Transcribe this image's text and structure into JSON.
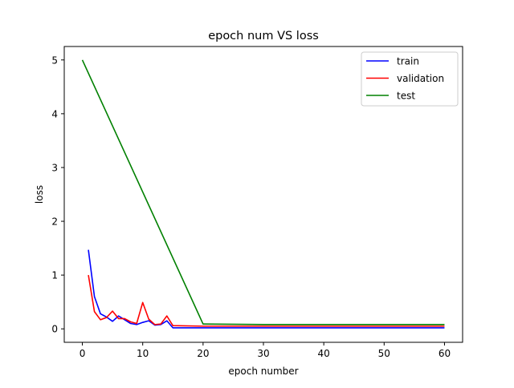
{
  "chart_data": {
    "type": "line",
    "title": "epoch num VS loss",
    "xlabel": "epoch number",
    "ylabel": "loss",
    "xlim": [
      -3,
      63
    ],
    "ylim": [
      -0.25,
      5.25
    ],
    "xticks": [
      0,
      10,
      20,
      30,
      40,
      50,
      60
    ],
    "yticks": [
      0,
      1,
      2,
      3,
      4,
      5
    ],
    "grid": false,
    "legend": "top-right",
    "series": [
      {
        "name": "train",
        "color": "#0000ff",
        "x": [
          1,
          2,
          3,
          4,
          5,
          6,
          7,
          8,
          9,
          10,
          11,
          12,
          13,
          14,
          15,
          20,
          30,
          40,
          50,
          60
        ],
        "y": [
          1.47,
          0.6,
          0.28,
          0.22,
          0.14,
          0.24,
          0.17,
          0.1,
          0.08,
          0.12,
          0.15,
          0.07,
          0.08,
          0.15,
          0.02,
          0.02,
          0.02,
          0.02,
          0.02,
          0.02
        ]
      },
      {
        "name": "validation",
        "color": "#ff0000",
        "x": [
          1,
          2,
          3,
          4,
          5,
          6,
          7,
          8,
          9,
          10,
          11,
          12,
          13,
          14,
          15,
          20,
          30,
          40,
          50,
          60
        ],
        "y": [
          1.0,
          0.32,
          0.17,
          0.21,
          0.33,
          0.19,
          0.19,
          0.13,
          0.1,
          0.49,
          0.18,
          0.08,
          0.09,
          0.24,
          0.06,
          0.05,
          0.05,
          0.05,
          0.05,
          0.05
        ]
      },
      {
        "name": "test",
        "color": "#008000",
        "x": [
          0,
          20,
          30,
          40,
          50,
          60
        ],
        "y": [
          5.0,
          0.09,
          0.08,
          0.08,
          0.08,
          0.08
        ]
      }
    ]
  }
}
